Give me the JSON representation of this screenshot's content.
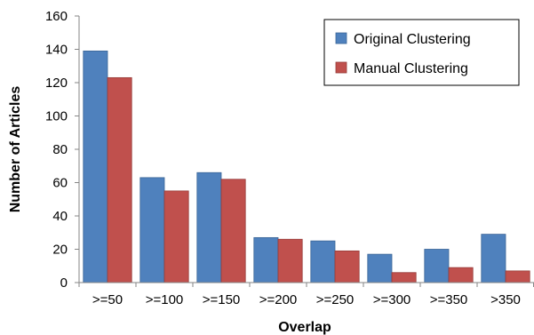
{
  "chart_data": {
    "type": "bar",
    "categories": [
      ">=50",
      ">=100",
      ">=150",
      ">=200",
      ">=250",
      ">=300",
      ">=350",
      ">350"
    ],
    "series": [
      {
        "name": "Original Clustering",
        "values": [
          139,
          63,
          66,
          27,
          25,
          17,
          20,
          29
        ],
        "color": "#4f81bd"
      },
      {
        "name": "Manual Clustering",
        "values": [
          123,
          55,
          62,
          26,
          19,
          6,
          9,
          7
        ],
        "color": "#c0504d"
      }
    ],
    "title": "",
    "xlabel": "Overlap",
    "ylabel": "Number of Articles",
    "ylim": [
      0,
      160
    ],
    "yticks": [
      0,
      20,
      40,
      60,
      80,
      100,
      120,
      140,
      160
    ],
    "grid": false,
    "legend_position": "top-right"
  }
}
